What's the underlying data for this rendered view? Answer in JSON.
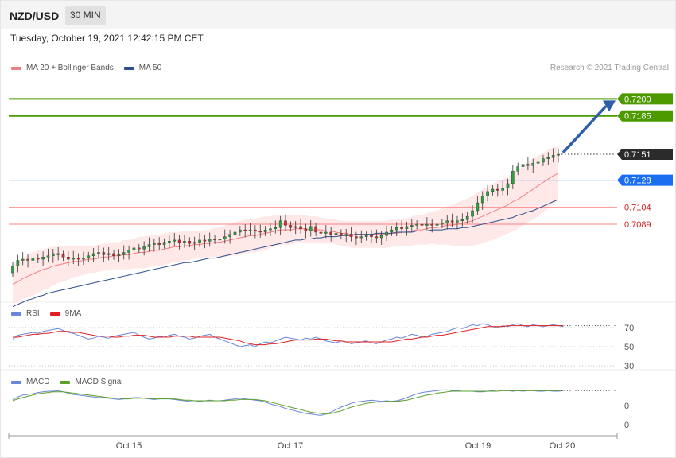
{
  "header": {
    "symbol": "NZD/USD",
    "timeframe": "30 MIN"
  },
  "timestamp": "Tuesday, October 19, 2021 12:42:15 PM CET",
  "credit": "Research © 2021 Trading Central",
  "legends": {
    "price": [
      {
        "name": "MA 20 + Bollinger Bands",
        "color": "#f08080"
      },
      {
        "name": "MA 50",
        "color": "#2f4f8f"
      }
    ],
    "rsi": [
      {
        "name": "RSI",
        "color": "#6a86d8"
      },
      {
        "name": "9MA",
        "color": "#e02020"
      }
    ],
    "macd": [
      {
        "name": "MACD",
        "color": "#6a86d8"
      },
      {
        "name": "MACD Signal",
        "color": "#5ea02a"
      }
    ]
  },
  "colors": {
    "up": "#2e9e3e",
    "down": "#d42a2a",
    "band": "#fde0e0",
    "ma20": "#f08080",
    "ma50": "#2f4f8f",
    "resistance": "#4c9a00",
    "support_blue": "#1a6ef0",
    "support_red": "#ff8080"
  },
  "chart_data": [
    {
      "type": "line",
      "title": "",
      "x_ticks": [
        "Oct 15",
        "Oct 17",
        "Oct 19",
        "Oct 20"
      ],
      "ylim": [
        0.702,
        0.722
      ],
      "closes": [
        0.7052,
        0.7057,
        0.7058,
        0.7057,
        0.7059,
        0.7058,
        0.706,
        0.7061,
        0.7063,
        0.7062,
        0.706,
        0.7058,
        0.7059,
        0.7058,
        0.7059,
        0.7061,
        0.7063,
        0.7064,
        0.7062,
        0.7063,
        0.7061,
        0.7062,
        0.7064,
        0.7066,
        0.7068,
        0.7067,
        0.7069,
        0.7071,
        0.7072,
        0.7071,
        0.7073,
        0.7074,
        0.7075,
        0.7073,
        0.7074,
        0.7072,
        0.7073,
        0.7075,
        0.7074,
        0.7076,
        0.7075,
        0.7076,
        0.7078,
        0.708,
        0.7082,
        0.7084,
        0.7083,
        0.7084,
        0.7083,
        0.7082,
        0.7084,
        0.7085,
        0.7086,
        0.7092,
        0.7088,
        0.7086,
        0.7087,
        0.7085,
        0.7083,
        0.7087,
        0.7082,
        0.7081,
        0.7082,
        0.708,
        0.7081,
        0.7079,
        0.708,
        0.7078,
        0.7077,
        0.7078,
        0.7079,
        0.7078,
        0.7077,
        0.7079,
        0.7082,
        0.7084,
        0.7086,
        0.7085,
        0.7087,
        0.7088,
        0.7089,
        0.7088,
        0.7089,
        0.7088,
        0.7089,
        0.709,
        0.7092,
        0.7091,
        0.7092,
        0.7093,
        0.7096,
        0.7101,
        0.7108,
        0.7114,
        0.7118,
        0.712,
        0.7119,
        0.7121,
        0.7125,
        0.7136,
        0.714,
        0.7142,
        0.7141,
        0.7143,
        0.7144,
        0.7147,
        0.7148,
        0.715,
        0.7151
      ],
      "ma20": [
        0.7036,
        0.7038,
        0.7041,
        0.7043,
        0.7045,
        0.7047,
        0.7049,
        0.705,
        0.7052,
        0.7053,
        0.7054,
        0.7055,
        0.7056,
        0.7056,
        0.7057,
        0.7058,
        0.7058,
        0.7059,
        0.706,
        0.706,
        0.7061,
        0.7061,
        0.7062,
        0.7062,
        0.7063,
        0.7064,
        0.7064,
        0.7065,
        0.7066,
        0.7066,
        0.7067,
        0.7068,
        0.7069,
        0.7069,
        0.707,
        0.707,
        0.7071,
        0.7071,
        0.7072,
        0.7072,
        0.7073,
        0.7073,
        0.7074,
        0.7075,
        0.7076,
        0.7077,
        0.7078,
        0.7079,
        0.7079,
        0.708,
        0.7081,
        0.7082,
        0.7083,
        0.7084,
        0.7084,
        0.7084,
        0.7085,
        0.7085,
        0.7085,
        0.7084,
        0.7084,
        0.7084,
        0.7083,
        0.7083,
        0.7082,
        0.7081,
        0.7081,
        0.708,
        0.708,
        0.708,
        0.708,
        0.708,
        0.708,
        0.708,
        0.708,
        0.7081,
        0.7081,
        0.7082,
        0.7082,
        0.7083,
        0.7084,
        0.7084,
        0.7085,
        0.7086,
        0.7086,
        0.7087,
        0.7088,
        0.7088,
        0.7089,
        0.709,
        0.7091,
        0.7092,
        0.7094,
        0.7096,
        0.7098,
        0.71,
        0.7102,
        0.7104,
        0.7106,
        0.7109,
        0.7111,
        0.7114,
        0.7117,
        0.712,
        0.7123,
        0.7126,
        0.7129,
        0.7132,
        0.7134
      ],
      "ma50": [
        0.7016,
        0.7018,
        0.702,
        0.7022,
        0.7023,
        0.7025,
        0.7026,
        0.7028,
        0.7029,
        0.703,
        0.7031,
        0.7032,
        0.7033,
        0.7034,
        0.7035,
        0.7036,
        0.7037,
        0.7038,
        0.7039,
        0.704,
        0.7041,
        0.7042,
        0.7043,
        0.7044,
        0.7045,
        0.7046,
        0.7047,
        0.7048,
        0.7049,
        0.705,
        0.7051,
        0.7052,
        0.7053,
        0.7054,
        0.7055,
        0.7055,
        0.7056,
        0.7057,
        0.7058,
        0.7059,
        0.7059,
        0.706,
        0.7061,
        0.7062,
        0.7063,
        0.7064,
        0.7065,
        0.7066,
        0.7067,
        0.7068,
        0.7069,
        0.707,
        0.7071,
        0.7072,
        0.7073,
        0.7074,
        0.7075,
        0.7075,
        0.7076,
        0.7076,
        0.7077,
        0.7077,
        0.7078,
        0.7078,
        0.7078,
        0.7079,
        0.7079,
        0.7079,
        0.708,
        0.708,
        0.708,
        0.708,
        0.7081,
        0.7081,
        0.7081,
        0.7081,
        0.7082,
        0.7082,
        0.7082,
        0.7082,
        0.7083,
        0.7083,
        0.7083,
        0.7084,
        0.7084,
        0.7084,
        0.7085,
        0.7085,
        0.7085,
        0.7086,
        0.7086,
        0.7087,
        0.7088,
        0.7089,
        0.709,
        0.7091,
        0.7092,
        0.7093,
        0.7094,
        0.7095,
        0.7097,
        0.7098,
        0.71,
        0.7101,
        0.7103,
        0.7105,
        0.7107,
        0.7109,
        0.7111
      ],
      "band_width": [
        0.0017,
        0.0018,
        0.0018,
        0.0019,
        0.0019,
        0.0019,
        0.0018,
        0.0018,
        0.0017,
        0.0016,
        0.0016,
        0.0015,
        0.0014,
        0.0013,
        0.0013,
        0.0012,
        0.0012,
        0.0012,
        0.0012,
        0.0012,
        0.0012,
        0.0012,
        0.0013,
        0.0013,
        0.0013,
        0.0014,
        0.0014,
        0.0014,
        0.0014,
        0.0014,
        0.0014,
        0.0014,
        0.0013,
        0.0013,
        0.0013,
        0.0013,
        0.0012,
        0.0012,
        0.0012,
        0.0012,
        0.0013,
        0.0013,
        0.0014,
        0.0014,
        0.0015,
        0.0015,
        0.0015,
        0.0015,
        0.0015,
        0.0015,
        0.0015,
        0.0014,
        0.0014,
        0.0013,
        0.0013,
        0.0013,
        0.0012,
        0.0012,
        0.0012,
        0.0012,
        0.0012,
        0.0011,
        0.0011,
        0.0011,
        0.0011,
        0.0011,
        0.0011,
        0.0012,
        0.0012,
        0.0012,
        0.0012,
        0.0012,
        0.0012,
        0.0012,
        0.0012,
        0.0012,
        0.0012,
        0.0012,
        0.0012,
        0.0013,
        0.0013,
        0.0013,
        0.0014,
        0.0014,
        0.0015,
        0.0016,
        0.0017,
        0.0018,
        0.0019,
        0.002,
        0.0021,
        0.0022,
        0.0023,
        0.0024,
        0.0024,
        0.0025,
        0.0025,
        0.0025,
        0.0025,
        0.0026,
        0.0026,
        0.0026,
        0.0026,
        0.0027,
        0.0027,
        0.0026,
        0.0026,
        0.0025,
        0.0024,
        0.0024
      ],
      "levels": [
        {
          "value": "0.7200",
          "kind": "resistance"
        },
        {
          "value": "0.7185",
          "kind": "resistance"
        },
        {
          "value": "0.7151",
          "kind": "last"
        },
        {
          "value": "0.7128",
          "kind": "support_blue"
        },
        {
          "value": "0.7104",
          "kind": "support_red"
        },
        {
          "value": "0.7089",
          "kind": "support_red"
        }
      ]
    },
    {
      "type": "line",
      "title": "RSI",
      "ylim": [
        30,
        80
      ],
      "y_ticks": [
        "70",
        "50",
        "30"
      ],
      "rsi": [
        58,
        62,
        63,
        64,
        65,
        64,
        66,
        67,
        68,
        69,
        67,
        65,
        64,
        62,
        60,
        58,
        59,
        61,
        60,
        59,
        61,
        62,
        63,
        64,
        65,
        62,
        60,
        58,
        59,
        61,
        60,
        62,
        63,
        61,
        60,
        58,
        59,
        61,
        62,
        63,
        60,
        58,
        56,
        54,
        52,
        50,
        51,
        52,
        50,
        53,
        55,
        54,
        56,
        58,
        60,
        59,
        58,
        57,
        59,
        58,
        60,
        58,
        56,
        55,
        54,
        56,
        55,
        53,
        54,
        55,
        56,
        54,
        53,
        55,
        57,
        58,
        60,
        59,
        61,
        63,
        62,
        60,
        61,
        63,
        64,
        65,
        66,
        68,
        70,
        69,
        71,
        73,
        72,
        74,
        73,
        71,
        70,
        72,
        71,
        73,
        74,
        72,
        71,
        73,
        72,
        71,
        72,
        73,
        72,
        71
      ],
      "ma9": [
        60,
        60,
        61,
        62,
        63,
        63,
        64,
        64,
        65,
        66,
        66,
        66,
        65,
        65,
        64,
        63,
        62,
        61,
        61,
        61,
        60,
        60,
        61,
        61,
        62,
        62,
        62,
        61,
        60,
        60,
        60,
        60,
        61,
        61,
        61,
        61,
        60,
        60,
        60,
        60,
        60,
        60,
        59,
        58,
        57,
        56,
        54,
        53,
        52,
        52,
        52,
        53,
        53,
        54,
        55,
        56,
        57,
        57,
        57,
        57,
        58,
        58,
        58,
        57,
        56,
        56,
        55,
        55,
        55,
        55,
        55,
        55,
        55,
        55,
        55,
        55,
        56,
        57,
        58,
        58,
        59,
        60,
        60,
        61,
        62,
        62,
        63,
        64,
        65,
        66,
        67,
        68,
        69,
        70,
        71,
        71,
        71,
        71,
        72,
        72,
        72,
        72,
        72,
        72,
        72,
        72,
        72,
        72,
        72,
        72
      ]
    },
    {
      "type": "line",
      "title": "MACD",
      "y_ticks": [
        "0",
        "0"
      ],
      "macd": [
        0.2,
        0.6,
        0.9,
        1.0,
        1.1,
        1.3,
        1.4,
        1.5,
        1.5,
        1.6,
        1.4,
        1.2,
        1.0,
        0.9,
        0.8,
        0.7,
        0.6,
        0.5,
        0.5,
        0.4,
        0.3,
        0.2,
        0.3,
        0.4,
        0.5,
        0.5,
        0.4,
        0.3,
        0.2,
        0.3,
        0.4,
        0.3,
        0.2,
        0.1,
        0.0,
        -0.1,
        -0.2,
        -0.1,
        0.0,
        0.1,
        0.0,
        0.0,
        0.1,
        0.2,
        0.3,
        0.4,
        0.3,
        0.2,
        0.1,
        0.0,
        -0.2,
        -0.5,
        -0.7,
        -0.9,
        -1.2,
        -1.4,
        -1.6,
        -1.8,
        -2.0,
        -2.1,
        -2.2,
        -2.3,
        -2.1,
        -1.8,
        -1.4,
        -1.0,
        -0.7,
        -0.4,
        -0.2,
        -0.1,
        0.0,
        0.1,
        0.0,
        -0.1,
        0.0,
        -0.1,
        0.0,
        0.2,
        0.5,
        0.8,
        1.1,
        1.3,
        1.4,
        1.5,
        1.6,
        1.7,
        1.7,
        1.6,
        1.6,
        1.5,
        1.5,
        1.5,
        1.4,
        1.4,
        1.5,
        1.6,
        1.7,
        1.6,
        1.6,
        1.5,
        1.6,
        1.5,
        1.6,
        1.6,
        1.5,
        1.5,
        1.6,
        1.5,
        1.5,
        1.6
      ],
      "signal": [
        0.0,
        0.3,
        0.5,
        0.7,
        0.9,
        1.1,
        1.2,
        1.3,
        1.4,
        1.4,
        1.4,
        1.3,
        1.2,
        1.1,
        1.0,
        0.9,
        0.8,
        0.7,
        0.6,
        0.5,
        0.4,
        0.4,
        0.3,
        0.3,
        0.4,
        0.4,
        0.4,
        0.4,
        0.3,
        0.3,
        0.3,
        0.3,
        0.3,
        0.2,
        0.1,
        0.1,
        0.0,
        0.0,
        0.0,
        0.0,
        0.0,
        0.0,
        0.0,
        0.1,
        0.1,
        0.2,
        0.2,
        0.2,
        0.2,
        0.1,
        0.0,
        -0.2,
        -0.4,
        -0.6,
        -0.8,
        -1.0,
        -1.2,
        -1.4,
        -1.6,
        -1.8,
        -1.9,
        -2.0,
        -2.1,
        -2.0,
        -1.8,
        -1.6,
        -1.3,
        -1.0,
        -0.8,
        -0.6,
        -0.4,
        -0.3,
        -0.2,
        -0.2,
        -0.1,
        -0.1,
        -0.1,
        0.0,
        0.1,
        0.3,
        0.5,
        0.7,
        0.9,
        1.0,
        1.2,
        1.3,
        1.4,
        1.5,
        1.5,
        1.5,
        1.5,
        1.5,
        1.5,
        1.5,
        1.5,
        1.5,
        1.5,
        1.6,
        1.6,
        1.6,
        1.6,
        1.6,
        1.6,
        1.6,
        1.6,
        1.6,
        1.6,
        1.6,
        1.6,
        1.6
      ]
    }
  ]
}
